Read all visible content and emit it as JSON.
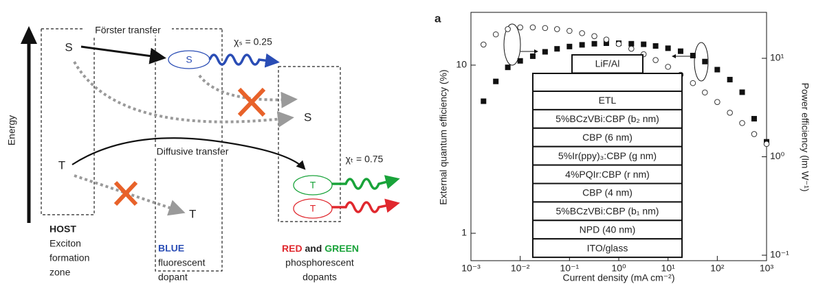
{
  "diagram": {
    "energy": "Energy",
    "forster": "Förster transfer",
    "host_s": "S",
    "blue_s": "S",
    "chi_s": "χₛ = 0.25",
    "quenched_s": "S",
    "diffusive": "Diffusive transfer",
    "host_t": "T",
    "chi_t": "χₜ = 0.75",
    "green_t": "T",
    "red_t": "T",
    "quenched_t": "T",
    "host": [
      "HOST",
      "Exciton",
      "formation",
      "zone"
    ],
    "blue": [
      "BLUE",
      "fluorescent",
      "dopant"
    ],
    "redgreen": {
      "red": "RED",
      "and": "and",
      "green": "GREEN",
      "lines": [
        "phosphorescent",
        "dopants"
      ]
    }
  },
  "chart_data": {
    "type": "scatter",
    "panel": "a",
    "xlabel": "Current density (mA cm⁻²)",
    "ylabel": "External quantum efficiency (%)",
    "y2label": "Power efficiency (lm W⁻¹)",
    "log_x": true,
    "log_y": true,
    "log_y2": true,
    "xlim": [
      0.001,
      1000
    ],
    "ylim": [
      0.687,
      20.6
    ],
    "y2lim": [
      0.088,
      29.3
    ],
    "xticks": [
      {
        "value": 0.001,
        "label": "10⁻³"
      },
      {
        "value": 0.01,
        "label": "10⁻²"
      },
      {
        "value": 0.1,
        "label": "10⁻¹"
      },
      {
        "value": 1,
        "label": "10⁰"
      },
      {
        "value": 10,
        "label": "10¹"
      },
      {
        "value": 100,
        "label": "10²"
      },
      {
        "value": 1000,
        "label": "10³"
      }
    ],
    "yticks": [
      1,
      10
    ],
    "y2ticks": [
      {
        "value": 0.1,
        "label": "10⁻¹"
      },
      {
        "value": 1,
        "label": "10⁰"
      },
      {
        "value": 10,
        "label": "10¹"
      }
    ],
    "x": [
      0.0018,
      0.0032,
      0.0056,
      0.01,
      0.018,
      0.032,
      0.056,
      0.1,
      0.18,
      0.32,
      0.56,
      1,
      1.8,
      3.2,
      5.6,
      10,
      18,
      32,
      56,
      100,
      180,
      320,
      560,
      1000
    ],
    "series": [
      {
        "color": "#111111",
        "marker": "square",
        "values": [
          6.1,
          8.0,
          9.7,
          10.6,
          11.3,
          12.0,
          12.5,
          12.9,
          13.2,
          13.4,
          13.5,
          13.5,
          13.4,
          13.3,
          13.0,
          12.6,
          12.1,
          11.4,
          10.5,
          9.4,
          8.2,
          6.9,
          4.8,
          3.5
        ]
      },
      {
        "color": "#333333",
        "marker": "circle",
        "axis": "y2",
        "values": [
          13.8,
          17.5,
          19.8,
          20.6,
          20.6,
          20.3,
          19.8,
          19.0,
          18.0,
          16.8,
          15.5,
          14.0,
          12.5,
          11.0,
          9.6,
          8.2,
          6.8,
          5.6,
          4.5,
          3.6,
          2.8,
          2.2,
          1.7,
          1.35
        ]
      }
    ],
    "device": {
      "top": "LiF/Al",
      "layers": [
        "ETL",
        "5%BCzVBi:CBP (b₂ nm)",
        "CBP (6 nm)",
        "5%Ir(ppy)₃:CBP (g nm)",
        "4%PQIr:CBP (r nm)",
        "CBP (4 nm)",
        "5%BCzVBi:CBP (b₁ nm)",
        "NPD (40 nm)",
        "ITO/glass"
      ]
    }
  }
}
